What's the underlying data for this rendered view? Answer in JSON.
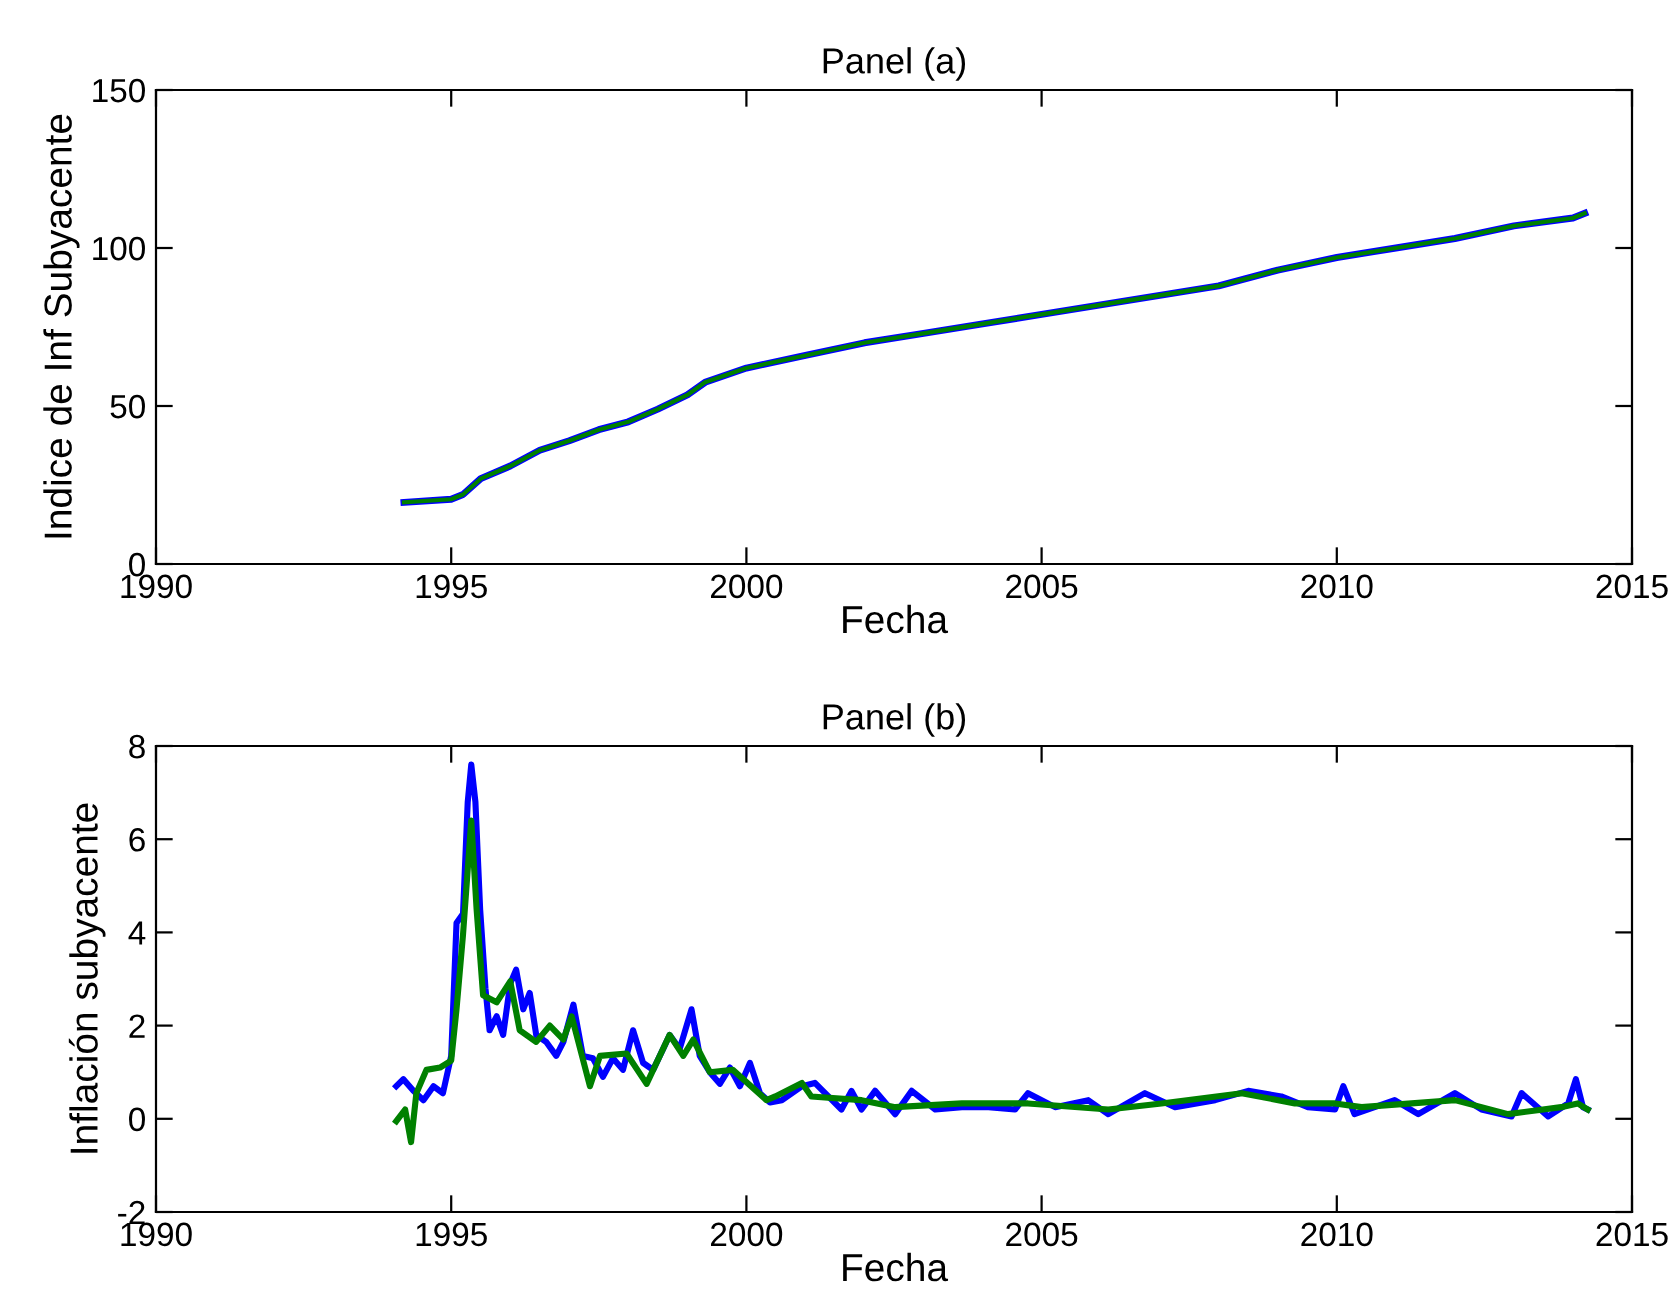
{
  "chart_data": [
    {
      "type": "line",
      "title": "Panel (a)",
      "xlabel": "Fecha",
      "ylabel": "Indice de Inf Subyacente",
      "xlim": [
        1990,
        2015
      ],
      "xticks": [
        1990,
        1995,
        2000,
        2005,
        2010,
        2015
      ],
      "ylim": [
        0,
        150
      ],
      "yticks": [
        0,
        50,
        100,
        150
      ],
      "grid": false,
      "legend": false,
      "x": [
        1994.2,
        1995,
        1995.2,
        1995.5,
        1996,
        1996.5,
        1997,
        1997.5,
        1998,
        1998.5,
        1999,
        1999.3,
        2000,
        2001,
        2002,
        2003,
        2004,
        2005,
        2006,
        2007,
        2008,
        2009,
        2010,
        2011,
        2012,
        2013,
        2014,
        2014.2
      ],
      "series": [
        {
          "color": "#0000ff",
          "values": [
            19.5,
            20.5,
            22,
            27,
            31,
            36,
            39,
            42.5,
            45,
            49,
            53.5,
            57.5,
            62,
            66,
            70,
            73,
            76,
            79,
            82,
            85,
            88,
            93,
            97,
            100,
            103,
            107,
            109.5,
            111
          ]
        },
        {
          "color": "#008000",
          "values": [
            19.5,
            20.5,
            22,
            27,
            31,
            36,
            39,
            42.5,
            45,
            49,
            53.5,
            57.5,
            62,
            66,
            70,
            73,
            76,
            79,
            82,
            85,
            88,
            93,
            97,
            100,
            103,
            107,
            109.5,
            111
          ]
        }
      ]
    },
    {
      "type": "line",
      "title": "Panel (b)",
      "xlabel": "Fecha",
      "ylabel": "Inflación subyacente",
      "xlim": [
        1990,
        2015
      ],
      "xticks": [
        1990,
        1995,
        2000,
        2005,
        2010,
        2015
      ],
      "ylim": [
        -2,
        8
      ],
      "yticks": [
        -2,
        0,
        2,
        4,
        6,
        8
      ],
      "grid": false,
      "legend": false,
      "series": [
        {
          "color": "#0000ff",
          "x": [
            1994.07,
            1994.19,
            1994.36,
            1994.53,
            1994.7,
            1994.86,
            1995.0,
            1995.09,
            1995.2,
            1995.28,
            1995.34,
            1995.41,
            1995.49,
            1995.58,
            1995.65,
            1995.77,
            1995.88,
            1996.0,
            1996.1,
            1996.22,
            1996.33,
            1996.44,
            1996.61,
            1996.78,
            1996.9,
            1997.07,
            1997.23,
            1997.4,
            1997.57,
            1997.74,
            1997.91,
            1998.08,
            1998.25,
            1998.42,
            1998.59,
            1998.7,
            1998.87,
            1999.07,
            1999.21,
            1999.38,
            1999.55,
            1999.72,
            1999.89,
            2000.06,
            2000.23,
            2000.4,
            2000.6,
            2000.94,
            2001.16,
            2001.61,
            2001.78,
            2001.95,
            2002.18,
            2002.52,
            2002.8,
            2003.2,
            2003.65,
            2004.1,
            2004.55,
            2004.77,
            2005.23,
            2005.79,
            2006.13,
            2006.75,
            2007.26,
            2007.94,
            2008.5,
            2009.06,
            2009.51,
            2009.97,
            2010.11,
            2010.3,
            2010.98,
            2011.38,
            2012.0,
            2012.45,
            2012.96,
            2013.13,
            2013.58,
            2013.92,
            2014.05,
            2014.17,
            2014.25
          ],
          "values": [
            0.7,
            0.85,
            0.6,
            0.4,
            0.7,
            0.55,
            1.35,
            4.2,
            4.4,
            6.8,
            7.6,
            6.8,
            4.5,
            2.8,
            1.9,
            2.2,
            1.8,
            2.9,
            3.2,
            2.35,
            2.7,
            1.8,
            1.65,
            1.35,
            1.65,
            2.45,
            1.35,
            1.3,
            0.9,
            1.3,
            1.05,
            1.9,
            1.2,
            1.05,
            1.5,
            1.8,
            1.5,
            2.35,
            1.35,
            1.0,
            0.75,
            1.1,
            0.7,
            1.2,
            0.55,
            0.35,
            0.4,
            0.7,
            0.77,
            0.2,
            0.6,
            0.2,
            0.6,
            0.1,
            0.6,
            0.2,
            0.25,
            0.25,
            0.2,
            0.55,
            0.25,
            0.4,
            0.1,
            0.55,
            0.25,
            0.4,
            0.6,
            0.48,
            0.25,
            0.2,
            0.7,
            0.1,
            0.4,
            0.1,
            0.55,
            0.2,
            0.05,
            0.55,
            0.05,
            0.33,
            0.85,
            0.25,
            0.2
          ]
        },
        {
          "color": "#008000",
          "x": [
            1994.07,
            1994.22,
            1994.32,
            1994.41,
            1994.58,
            1994.81,
            1995.0,
            1995.09,
            1995.2,
            1995.34,
            1995.43,
            1995.54,
            1995.77,
            1996.0,
            1996.16,
            1996.44,
            1996.67,
            1996.9,
            1997.04,
            1997.35,
            1997.52,
            1997.97,
            1998.31,
            1998.7,
            1998.93,
            1999.1,
            1999.38,
            1999.77,
            2000.34,
            2000.49,
            2000.94,
            2001.1,
            2001.95,
            2002.52,
            2003.65,
            2004.77,
            2006.13,
            2007.03,
            2008.39,
            2009.29,
            2009.97,
            2010.42,
            2012.0,
            2012.9,
            2013.8,
            2014.08,
            2014.25
          ],
          "values": [
            -0.05,
            0.2,
            -0.5,
            0.55,
            1.05,
            1.1,
            1.25,
            2.35,
            3.95,
            6.4,
            4.5,
            2.65,
            2.5,
            2.95,
            1.9,
            1.65,
            2.0,
            1.7,
            2.2,
            0.7,
            1.35,
            1.4,
            0.75,
            1.8,
            1.35,
            1.7,
            1.0,
            1.05,
            0.4,
            0.48,
            0.77,
            0.48,
            0.4,
            0.25,
            0.33,
            0.33,
            0.2,
            0.33,
            0.55,
            0.33,
            0.33,
            0.25,
            0.4,
            0.1,
            0.25,
            0.33,
            0.2
          ]
        }
      ]
    }
  ]
}
